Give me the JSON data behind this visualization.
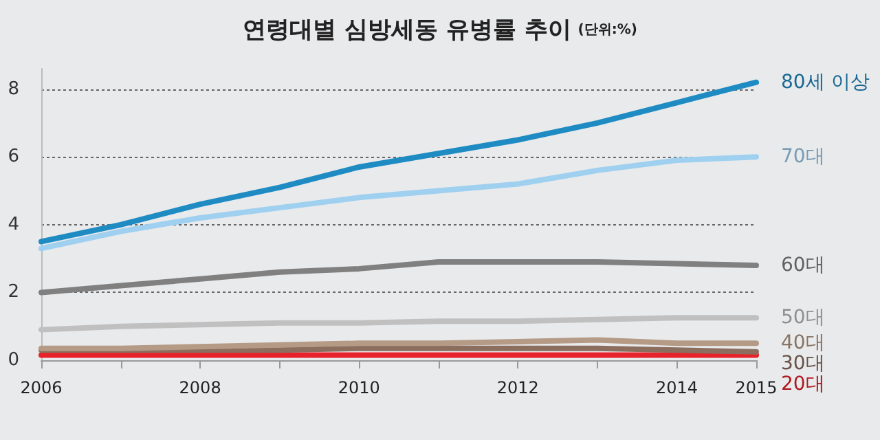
{
  "chart_data": {
    "type": "line",
    "title": "연령대별 심방세동 유병률 추이",
    "subtitle": "(단위:%)",
    "x": [
      2006,
      2007,
      2008,
      2009,
      2010,
      2011,
      2012,
      2013,
      2014,
      2015
    ],
    "xlim": [
      2006,
      2015
    ],
    "xticks": [
      2006,
      {
        "value": 2007,
        "label": null
      },
      2008,
      {
        "value": 2009,
        "label": null
      },
      2010,
      {
        "value": 2011,
        "label": null
      },
      2012,
      {
        "value": 2013,
        "label": null
      },
      2014,
      2015
    ],
    "ylim": [
      0,
      8.6
    ],
    "yticks": [
      0,
      2,
      4,
      6,
      8
    ],
    "grid": "y",
    "legend": false,
    "marker": "none",
    "line_style": "solid",
    "series": [
      {
        "name": "80세 이상",
        "color": "#1e8bc3",
        "values": [
          3.5,
          4.0,
          4.6,
          5.1,
          5.7,
          6.1,
          6.5,
          7.0,
          7.6,
          8.2
        ]
      },
      {
        "name": "70대",
        "color": "#9fd0f0",
        "values": [
          3.3,
          3.8,
          4.2,
          4.5,
          4.8,
          5.0,
          5.2,
          5.6,
          5.9,
          6.0
        ]
      },
      {
        "name": "60대",
        "color": "#808080",
        "values": [
          2.0,
          2.2,
          2.4,
          2.6,
          2.7,
          2.9,
          2.9,
          2.9,
          2.85,
          2.8
        ]
      },
      {
        "name": "50대",
        "color": "#c0c0c0",
        "values": [
          0.9,
          1.0,
          1.05,
          1.1,
          1.1,
          1.15,
          1.15,
          1.2,
          1.25,
          1.25
        ]
      },
      {
        "name": "40대",
        "color": "#b59a85",
        "values": [
          0.35,
          0.35,
          0.4,
          0.45,
          0.5,
          0.5,
          0.55,
          0.6,
          0.5,
          0.5
        ]
      },
      {
        "name": "30대",
        "color": "#8c6e5e",
        "values": [
          0.3,
          0.3,
          0.3,
          0.3,
          0.35,
          0.35,
          0.35,
          0.35,
          0.3,
          0.25
        ]
      },
      {
        "name": "20대",
        "color": "#e8222a",
        "values": [
          0.15,
          0.15,
          0.15,
          0.15,
          0.15,
          0.15,
          0.15,
          0.15,
          0.15,
          0.15
        ]
      }
    ]
  }
}
